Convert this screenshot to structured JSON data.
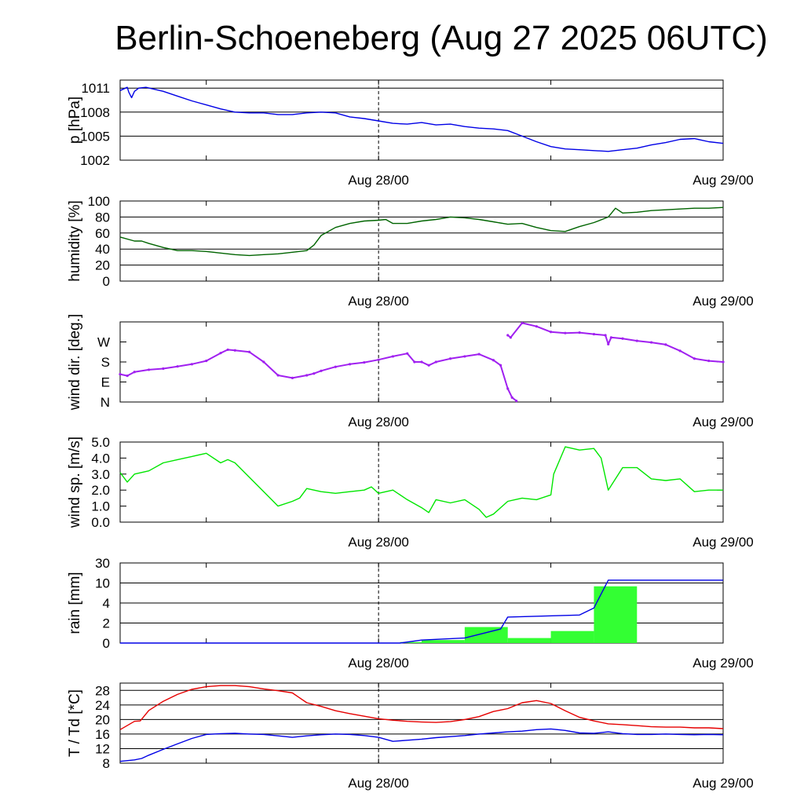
{
  "title": "Berlin-Schoeneberg (Aug 27 2025 06UTC)",
  "time_axis": {
    "hours_total": 42,
    "labels": [
      {
        "text": "Aug 28/00",
        "hour": 18
      },
      {
        "text": "Aug 29/00",
        "hour": 42
      }
    ],
    "minor_tick_hours": [
      6,
      18,
      30,
      42
    ],
    "dashed_line_hour": 18
  },
  "chart_data": [
    {
      "id": "pressure",
      "type": "line",
      "ylabel": "p [hPa]",
      "ylim": [
        1002,
        1012
      ],
      "yticks": [
        1002,
        1005,
        1008,
        1011
      ],
      "ytick_labels": [
        "1002",
        "1005",
        "1008",
        "1011"
      ],
      "grid": true,
      "series": [
        {
          "color": "#0000e6",
          "x": [
            0,
            0.5,
            0.6,
            0.8,
            1,
            1.3,
            1.8,
            2.5,
            3,
            4,
            5,
            6,
            7,
            8,
            9,
            10,
            11,
            12,
            13,
            14,
            15,
            16,
            17,
            18,
            19,
            20,
            21,
            22,
            23,
            24,
            25,
            26,
            27,
            28,
            29,
            30,
            31,
            32,
            33,
            34,
            35,
            36,
            37,
            38,
            39,
            40,
            41,
            42
          ],
          "y": [
            1010.7,
            1011.1,
            1010.5,
            1009.8,
            1010.6,
            1011.0,
            1011.1,
            1010.8,
            1010.6,
            1010.0,
            1009.4,
            1008.9,
            1008.4,
            1008.0,
            1007.9,
            1007.9,
            1007.7,
            1007.7,
            1007.9,
            1008.0,
            1007.9,
            1007.4,
            1007.2,
            1006.9,
            1006.6,
            1006.5,
            1006.7,
            1006.4,
            1006.5,
            1006.2,
            1006.0,
            1005.9,
            1005.7,
            1005.0,
            1004.3,
            1003.7,
            1003.4,
            1003.3,
            1003.2,
            1003.1,
            1003.3,
            1003.5,
            1003.9,
            1004.2,
            1004.6,
            1004.7,
            1004.3,
            1004.1
          ]
        }
      ]
    },
    {
      "id": "humidity",
      "type": "line",
      "ylabel": "humidity [%]",
      "ylim": [
        0,
        100
      ],
      "yticks": [
        0,
        20,
        40,
        60,
        80,
        100
      ],
      "ytick_labels": [
        "0",
        "20",
        "40",
        "60",
        "80",
        "100"
      ],
      "grid": true,
      "series": [
        {
          "color": "#006400",
          "x": [
            0,
            1,
            1.5,
            2,
            3,
            4,
            5,
            6,
            7,
            8,
            9,
            10,
            11,
            12,
            13,
            13.5,
            14,
            15,
            16,
            17,
            18,
            18.5,
            19,
            20,
            21,
            22,
            23,
            24,
            25,
            26,
            27,
            28,
            29,
            30,
            31,
            32,
            33,
            34,
            34.5,
            35,
            36,
            37,
            38,
            39,
            40,
            41,
            42
          ],
          "y": [
            55,
            50,
            50,
            47,
            42,
            38,
            38,
            37,
            35,
            33,
            32,
            33,
            34,
            36,
            38,
            45,
            57,
            67,
            72,
            75,
            76,
            77,
            72,
            72,
            75,
            77,
            80,
            79,
            77,
            74,
            71,
            72,
            67,
            63,
            62,
            68,
            73,
            80,
            91,
            85,
            86,
            88,
            89,
            90,
            91,
            91,
            92
          ]
        }
      ]
    },
    {
      "id": "wind-direction",
      "type": "scatter",
      "ylabel": "wind dir. [deg.]",
      "ylim": [
        0,
        360
      ],
      "yticks": [
        0,
        90,
        180,
        270
      ],
      "ytick_labels": [
        "N",
        "E",
        "S",
        "W"
      ],
      "grid": false,
      "series": [
        {
          "color": "#a020f0",
          "x": [
            0,
            0.5,
            1,
            2,
            3,
            4,
            5,
            6,
            7,
            7.5,
            8,
            9,
            10,
            11,
            12,
            13,
            13.5,
            14,
            15,
            16,
            17,
            18,
            19,
            20,
            20.5,
            21,
            21.5,
            22,
            23,
            24,
            25,
            26,
            26.5,
            27,
            27.3,
            27.6
          ],
          "y": [
            125,
            118,
            135,
            145,
            150,
            160,
            170,
            185,
            220,
            235,
            232,
            225,
            180,
            120,
            108,
            120,
            128,
            140,
            158,
            170,
            178,
            190,
            205,
            218,
            180,
            180,
            165,
            180,
            195,
            205,
            215,
            188,
            165,
            60,
            20,
            5
          ]
        },
        {
          "color": "#a020f0",
          "x": [
            27.0,
            27.2,
            28,
            29,
            30,
            31,
            32,
            33,
            33.8,
            34,
            34.2,
            35,
            36,
            37,
            38,
            39,
            40,
            41,
            42
          ],
          "y": [
            300,
            290,
            355,
            340,
            315,
            310,
            312,
            305,
            300,
            260,
            290,
            285,
            275,
            268,
            258,
            230,
            195,
            185,
            180
          ]
        }
      ]
    },
    {
      "id": "wind-speed",
      "type": "line",
      "ylabel": "wind sp. [m/s]",
      "ylim": [
        0,
        5
      ],
      "yticks": [
        0,
        1,
        2,
        3,
        4,
        5
      ],
      "ytick_labels": [
        "0.0",
        "1.0",
        "2.0",
        "3.0",
        "4.0",
        "5.0"
      ],
      "grid": false,
      "series": [
        {
          "color": "#00e600",
          "x": [
            0,
            0.5,
            1,
            2,
            3,
            4,
            5,
            6,
            7,
            7.5,
            8,
            9,
            10,
            11,
            12,
            12.5,
            13,
            14,
            15,
            16,
            17,
            17.5,
            18,
            19,
            20,
            21,
            21.5,
            22,
            23,
            24,
            25,
            25.5,
            26,
            27,
            28,
            29,
            30,
            30.2,
            31,
            32,
            33,
            33.5,
            34,
            35,
            36,
            37,
            38,
            39,
            40,
            41,
            42
          ],
          "y": [
            3.1,
            2.5,
            3.0,
            3.2,
            3.7,
            3.9,
            4.1,
            4.3,
            3.7,
            3.9,
            3.7,
            2.8,
            1.9,
            1.0,
            1.3,
            1.5,
            2.1,
            1.9,
            1.8,
            1.9,
            2.0,
            2.2,
            1.8,
            2.0,
            1.4,
            0.9,
            0.6,
            1.4,
            1.2,
            1.4,
            0.8,
            0.3,
            0.5,
            1.3,
            1.5,
            1.4,
            1.7,
            3.0,
            4.7,
            4.5,
            4.6,
            4.0,
            2.0,
            3.4,
            3.4,
            2.7,
            2.6,
            2.7,
            1.9,
            2.0,
            2.0
          ]
        }
      ]
    },
    {
      "id": "rain",
      "type": "bar",
      "ylabel": "rain [mm]",
      "scale": "piecewise",
      "yticks": [
        0,
        2,
        4,
        10,
        30
      ],
      "ytick_labels": [
        "0",
        "2",
        "4",
        "10",
        "30"
      ],
      "grid": true,
      "bars": [
        {
          "start": 19.5,
          "end": 21,
          "value": 0.1
        },
        {
          "start": 21,
          "end": 24,
          "value": 0.3
        },
        {
          "start": 24,
          "end": 27,
          "value": 1.6
        },
        {
          "start": 27,
          "end": 30,
          "value": 0.5
        },
        {
          "start": 30,
          "end": 33,
          "value": 1.2
        },
        {
          "start": 33,
          "end": 36,
          "value": 9.0
        }
      ],
      "bar_color": "#33ff33",
      "series": [
        {
          "name": "",
          "color": "#0000e6",
          "x": [
            0,
            19.5,
            21,
            24,
            26.5,
            27,
            32,
            33,
            34,
            42
          ],
          "y": [
            0,
            0,
            0.3,
            0.5,
            1.4,
            2.6,
            2.8,
            3.5,
            12.8,
            12.8
          ]
        }
      ]
    },
    {
      "id": "temperature",
      "type": "line",
      "ylabel": "T / Td [*C]",
      "ylim": [
        8,
        30
      ],
      "yticks": [
        8,
        12,
        16,
        20,
        24,
        28
      ],
      "ytick_labels": [
        "8",
        "12",
        "16",
        "20",
        "24",
        "28"
      ],
      "grid": true,
      "series": [
        {
          "color": "#e60000",
          "x": [
            0,
            1,
            1.4,
            2,
            3,
            4,
            5,
            6,
            7,
            8,
            9,
            10,
            11,
            12,
            13,
            14,
            15,
            16,
            17,
            18,
            19,
            20,
            21,
            22,
            23,
            24,
            25,
            26,
            27,
            28,
            29,
            30,
            31,
            32,
            33,
            34,
            35,
            36,
            37,
            38,
            39,
            40,
            41,
            42
          ],
          "y": [
            17.2,
            19.5,
            19.6,
            22.5,
            25.0,
            26.9,
            28.3,
            29.0,
            29.3,
            29.3,
            29.0,
            28.4,
            27.9,
            27.3,
            24.6,
            23.6,
            22.4,
            21.6,
            20.9,
            20.2,
            19.8,
            19.5,
            19.3,
            19.2,
            19.4,
            20.0,
            20.8,
            22.2,
            23.0,
            24.6,
            25.2,
            24.4,
            22.4,
            20.6,
            19.6,
            18.8,
            18.6,
            18.3,
            18.0,
            17.9,
            17.9,
            17.7,
            17.7,
            17.5
          ]
        },
        {
          "color": "#0000e6",
          "x": [
            0,
            1,
            1.5,
            2,
            3,
            4,
            5,
            6,
            7,
            8,
            9,
            10,
            11,
            12,
            13,
            14,
            15,
            16,
            17,
            18,
            19,
            20,
            21,
            22,
            23,
            24,
            25,
            26,
            27,
            28,
            29,
            30,
            31,
            32,
            33,
            34,
            35,
            36,
            37,
            38,
            39,
            40,
            41,
            42
          ],
          "y": [
            8.5,
            8.9,
            9.3,
            10.2,
            11.8,
            13.3,
            14.8,
            15.9,
            16.1,
            16.2,
            16.0,
            15.9,
            15.5,
            15.1,
            15.5,
            15.8,
            16.0,
            15.9,
            15.6,
            15.1,
            14.0,
            14.3,
            14.6,
            15.0,
            15.3,
            15.6,
            16.0,
            16.3,
            16.6,
            16.8,
            17.2,
            17.4,
            17.0,
            16.3,
            16.2,
            16.6,
            16.1,
            15.9,
            15.9,
            16.0,
            15.9,
            15.8,
            15.9,
            15.8
          ]
        }
      ]
    }
  ]
}
